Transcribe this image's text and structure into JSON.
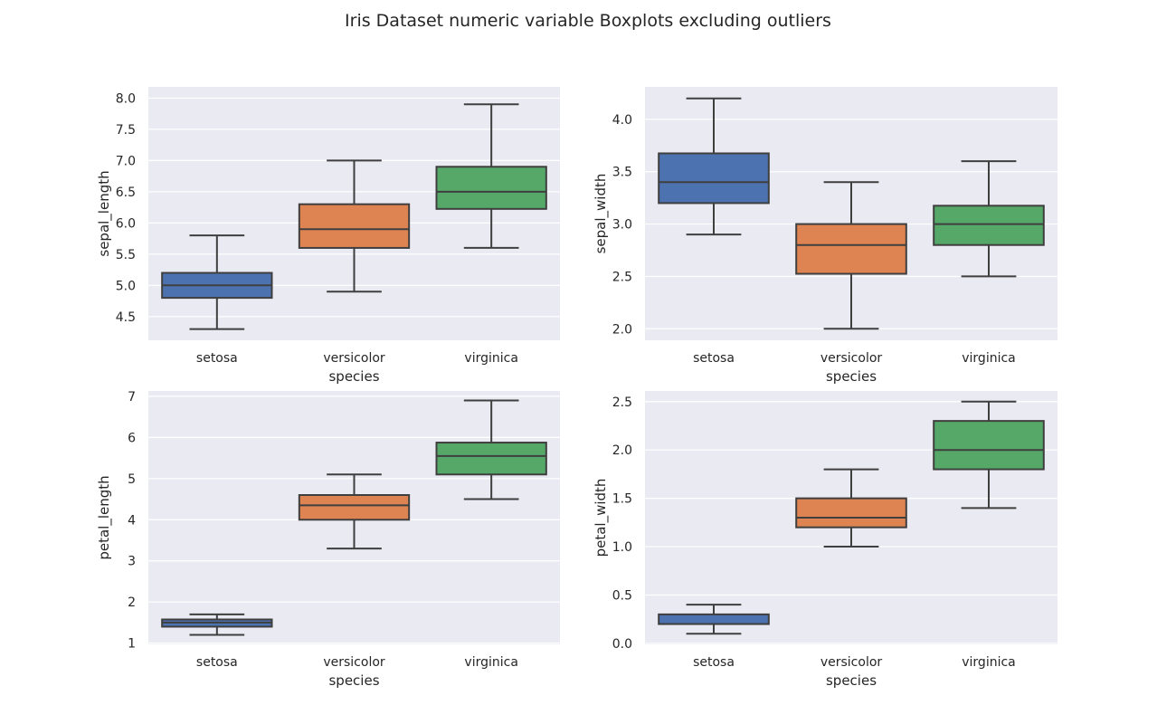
{
  "figure": {
    "title": "Iris Dataset numeric variable Boxplots excluding outliers"
  },
  "colors": {
    "background": "#eaeaf2",
    "grid": "#ffffff",
    "line": "#3f3f3f",
    "setosa": "#4c72b0",
    "versicolor": "#dd8452",
    "virginica": "#55a868"
  },
  "chart_data": [
    {
      "type": "box",
      "xlabel": "species",
      "ylabel": "sepal_length",
      "categories": [
        "setosa",
        "versicolor",
        "virginica"
      ],
      "ylim": [
        4.12,
        8.18
      ],
      "yticks": [
        4.5,
        5.0,
        5.5,
        6.0,
        6.5,
        7.0,
        7.5,
        8.0
      ],
      "ytick_labels": [
        "4.5",
        "5.0",
        "5.5",
        "6.0",
        "6.5",
        "7.0",
        "7.5",
        "8.0"
      ],
      "boxes": [
        {
          "category": "setosa",
          "whisker_low": 4.3,
          "q1": 4.8,
          "median": 5.0,
          "q3": 5.2,
          "whisker_high": 5.8
        },
        {
          "category": "versicolor",
          "whisker_low": 4.9,
          "q1": 5.6,
          "median": 5.9,
          "q3": 6.3,
          "whisker_high": 7.0
        },
        {
          "category": "virginica",
          "whisker_low": 5.6,
          "q1": 6.225,
          "median": 6.5,
          "q3": 6.9,
          "whisker_high": 7.9
        }
      ]
    },
    {
      "type": "box",
      "xlabel": "species",
      "ylabel": "sepal_width",
      "categories": [
        "setosa",
        "versicolor",
        "virginica"
      ],
      "ylim": [
        1.89,
        4.31
      ],
      "yticks": [
        2.0,
        2.5,
        3.0,
        3.5,
        4.0
      ],
      "ytick_labels": [
        "2.0",
        "2.5",
        "3.0",
        "3.5",
        "4.0"
      ],
      "boxes": [
        {
          "category": "setosa",
          "whisker_low": 2.9,
          "q1": 3.2,
          "median": 3.4,
          "q3": 3.675,
          "whisker_high": 4.2
        },
        {
          "category": "versicolor",
          "whisker_low": 2.0,
          "q1": 2.525,
          "median": 2.8,
          "q3": 3.0,
          "whisker_high": 3.4
        },
        {
          "category": "virginica",
          "whisker_low": 2.5,
          "q1": 2.8,
          "median": 3.0,
          "q3": 3.175,
          "whisker_high": 3.6
        }
      ]
    },
    {
      "type": "box",
      "xlabel": "species",
      "ylabel": "petal_length",
      "categories": [
        "setosa",
        "versicolor",
        "virginica"
      ],
      "ylim": [
        0.97,
        7.13
      ],
      "yticks": [
        1,
        2,
        3,
        4,
        5,
        6,
        7
      ],
      "ytick_labels": [
        "1",
        "2",
        "3",
        "4",
        "5",
        "6",
        "7"
      ],
      "boxes": [
        {
          "category": "setosa",
          "whisker_low": 1.2,
          "q1": 1.4,
          "median": 1.5,
          "q3": 1.575,
          "whisker_high": 1.7
        },
        {
          "category": "versicolor",
          "whisker_low": 3.3,
          "q1": 4.0,
          "median": 4.35,
          "q3": 4.6,
          "whisker_high": 5.1
        },
        {
          "category": "virginica",
          "whisker_low": 4.5,
          "q1": 5.1,
          "median": 5.55,
          "q3": 5.875,
          "whisker_high": 6.9
        }
      ]
    },
    {
      "type": "box",
      "xlabel": "species",
      "ylabel": "petal_width",
      "categories": [
        "setosa",
        "versicolor",
        "virginica"
      ],
      "ylim": [
        -0.01,
        2.61
      ],
      "yticks": [
        0.0,
        0.5,
        1.0,
        1.5,
        2.0,
        2.5
      ],
      "ytick_labels": [
        "0.0",
        "0.5",
        "1.0",
        "1.5",
        "2.0",
        "2.5"
      ],
      "boxes": [
        {
          "category": "setosa",
          "whisker_low": 0.1,
          "q1": 0.2,
          "median": 0.2,
          "q3": 0.3,
          "whisker_high": 0.4
        },
        {
          "category": "versicolor",
          "whisker_low": 1.0,
          "q1": 1.2,
          "median": 1.3,
          "q3": 1.5,
          "whisker_high": 1.8
        },
        {
          "category": "virginica",
          "whisker_low": 1.4,
          "q1": 1.8,
          "median": 2.0,
          "q3": 2.3,
          "whisker_high": 2.5
        }
      ]
    }
  ]
}
